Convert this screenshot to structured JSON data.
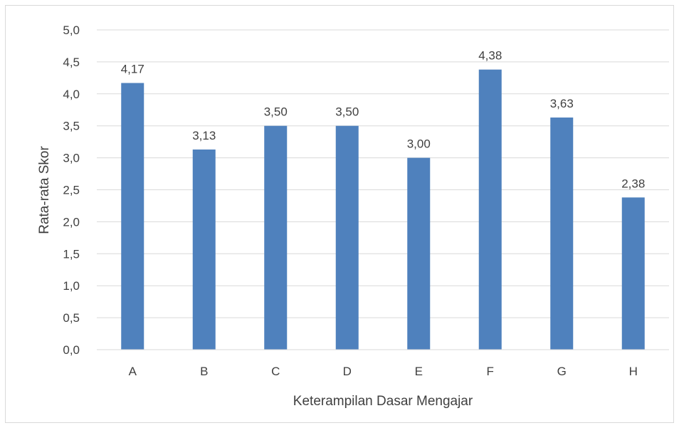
{
  "chart_data": {
    "type": "bar",
    "title": "",
    "xlabel": "Keterampilan Dasar Mengajar",
    "ylabel": "Rata-rata Skor",
    "categories": [
      "A",
      "B",
      "C",
      "D",
      "E",
      "F",
      "G",
      "H"
    ],
    "values": [
      4.17,
      3.13,
      3.5,
      3.5,
      3.0,
      4.38,
      3.63,
      2.38
    ],
    "value_labels": [
      "4,17",
      "3,13",
      "3,50",
      "3,50",
      "3,00",
      "4,38",
      "3,63",
      "2,38"
    ],
    "ylim": [
      0,
      5
    ],
    "y_ticks": [
      0,
      0.5,
      1,
      1.5,
      2,
      2.5,
      3,
      3.5,
      4,
      4.5,
      5
    ],
    "y_tick_labels": [
      "0,0",
      "0,5",
      "1,0",
      "1,5",
      "2,0",
      "2,5",
      "3,0",
      "3,5",
      "4,0",
      "4,5",
      "5,0"
    ],
    "grid": true,
    "legend": "none",
    "bar_color": "#4f81bd",
    "grid_color": "#d9d9d9"
  }
}
